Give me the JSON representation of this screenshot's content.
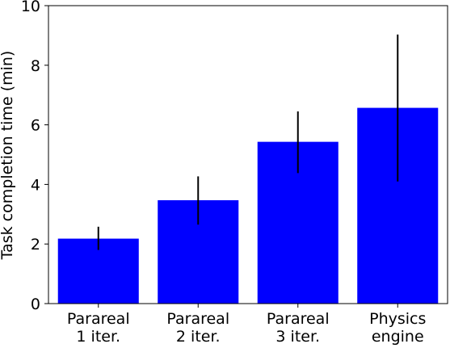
{
  "chart_data": {
    "type": "bar",
    "title": "",
    "xlabel": "",
    "ylabel": "Task completion time (min)",
    "categories": [
      [
        "Parareal",
        "1 iter."
      ],
      [
        "Parareal",
        "2 iter."
      ],
      [
        "Parareal",
        "3 iter."
      ],
      [
        "Physics",
        "engine"
      ]
    ],
    "values": [
      2.18,
      3.47,
      5.43,
      6.57
    ],
    "error_low": [
      1.8,
      2.65,
      4.38,
      4.1
    ],
    "error_high": [
      2.58,
      4.27,
      6.45,
      9.03
    ],
    "ylim": [
      0,
      10
    ],
    "yticks": [
      0,
      2,
      4,
      6,
      8,
      10
    ],
    "grid": false,
    "bar_color": "#0000ff",
    "error_color": "#000000"
  }
}
